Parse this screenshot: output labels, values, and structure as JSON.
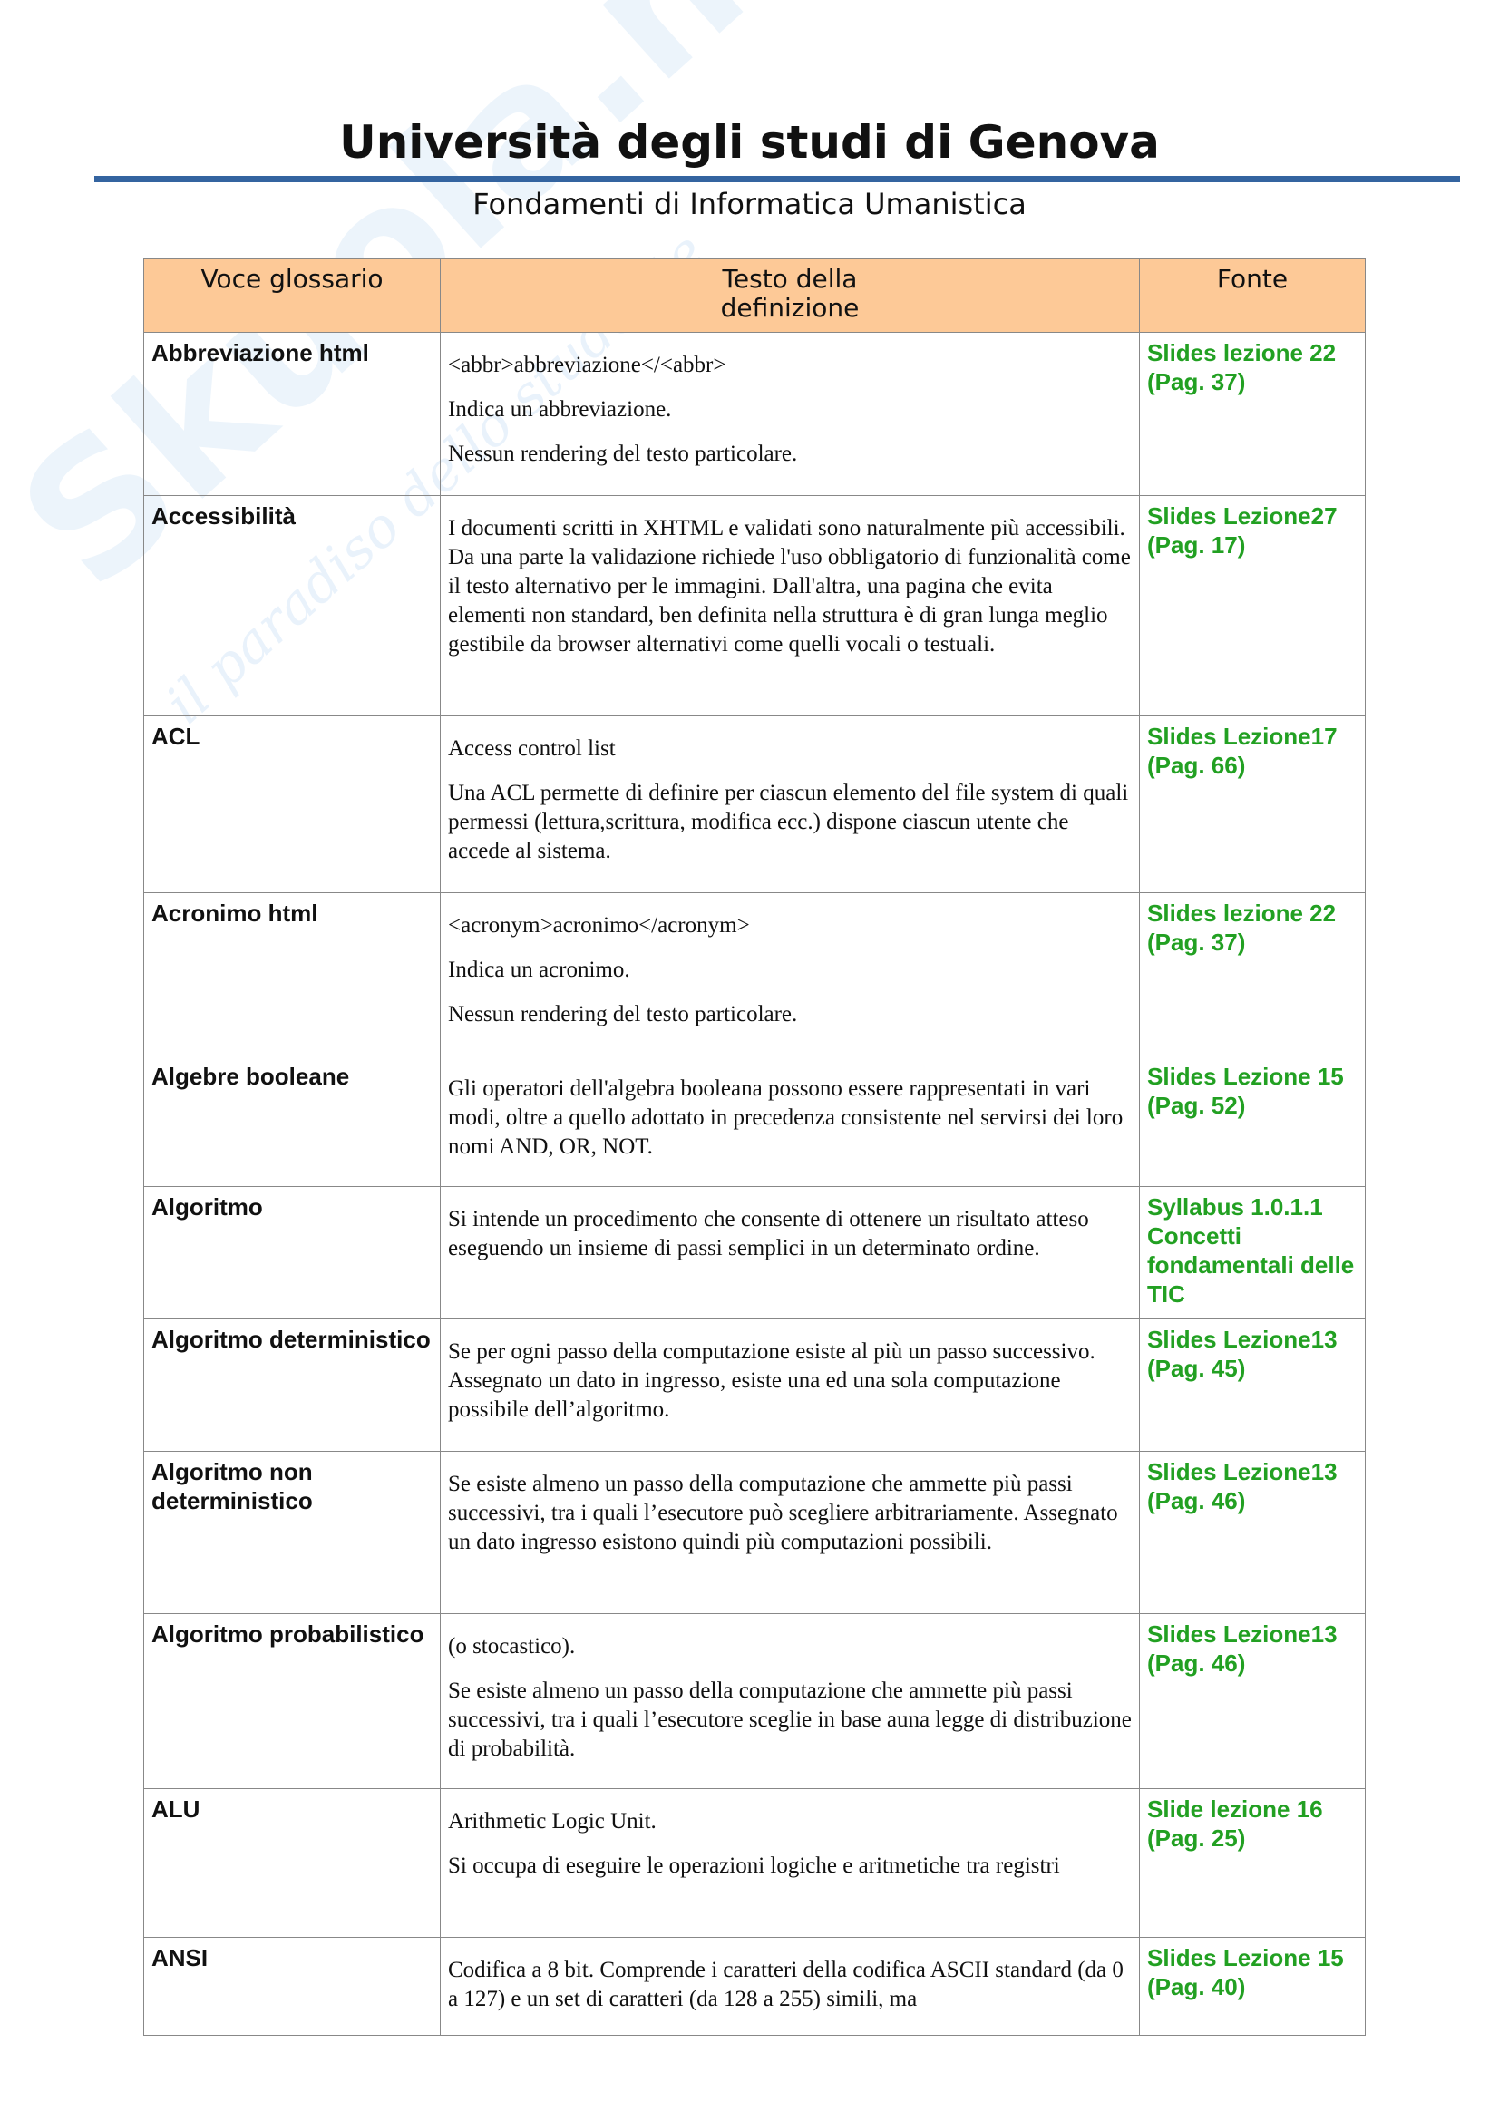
{
  "header": {
    "title": "Università degli studi di Genova",
    "subtitle": "Fondamenti di Informatica Umanistica"
  },
  "watermark": {
    "logo": "Skuola.net",
    "tagline": "il paradiso dello studente"
  },
  "table": {
    "columns": [
      "Voce glossario",
      "Testo della definizione",
      "Fonte"
    ],
    "rows": [
      {
        "term": "Abbreviazione html",
        "def": [
          "<abbr>abbreviazione</<abbr>",
          "Indica un abbreviazione.",
          "Nessun rendering del testo particolare."
        ],
        "src": "Slides lezione 22 (Pag. 37)"
      },
      {
        "term": "Accessibilità",
        "def": [
          "I documenti scritti in XHTML e validati sono naturalmente più accessibili. Da una parte la validazione richiede l'uso obbligatorio di funzionalità come il testo alternativo per le immagini. Dall'altra, una pagina che evita elementi non standard, ben definita nella struttura è di gran lunga meglio gestibile da browser alternativi come quelli vocali o testuali."
        ],
        "src": "Slides Lezione27 (Pag. 17)"
      },
      {
        "term": "ACL",
        "def": [
          "Access control list",
          "Una ACL permette di definire per ciascun elemento del file system di quali permessi (lettura,scrittura, modifica ecc.) dispone ciascun utente che accede al sistema."
        ],
        "src": "Slides Lezione17 (Pag. 66)"
      },
      {
        "term": "Acronimo html",
        "def": [
          "<acronym>acronimo</acronym>",
          "Indica un acronimo.",
          "Nessun rendering del testo particolare."
        ],
        "src": "Slides lezione 22 (Pag. 37)"
      },
      {
        "term": "Algebre booleane",
        "def": [
          "Gli operatori dell'algebra booleana possono essere rappresentati in vari modi, oltre a quello adottato in precedenza consistente nel servirsi dei loro nomi AND, OR, NOT."
        ],
        "src": "Slides Lezione 15 (Pag. 52)"
      },
      {
        "term": "Algoritmo",
        "def": [
          "Si intende un procedimento che consente di ottenere un risultato atteso eseguendo un insieme di passi semplici in un determinato ordine."
        ],
        "src": "Syllabus 1.0.1.1 Concetti fondamentali delle TIC"
      },
      {
        "term": "Algoritmo deterministico",
        "def": [
          "Se per ogni passo della computazione esiste al più un passo successivo. Assegnato un dato in ingresso, esiste una ed una sola computazione possibile dell’algoritmo."
        ],
        "src": "Slides Lezione13 (Pag. 45)"
      },
      {
        "term": "Algoritmo non deterministico",
        "def": [
          "Se esiste almeno un passo della computazione che ammette più passi successivi, tra i quali l’esecutore può scegliere arbitrariamente. Assegnato un dato ingresso esistono quindi più computazioni possibili."
        ],
        "src": "Slides Lezione13 (Pag. 46)"
      },
      {
        "term": "Algoritmo probabilistico",
        "def": [
          "(o stocastico).",
          "Se esiste almeno un passo della computazione che ammette più passi successivi, tra i quali l’esecutore sceglie in base auna legge di distribuzione di probabilità."
        ],
        "src": "Slides Lezione13 (Pag. 46)"
      },
      {
        "term": "ALU",
        "def": [
          "Arithmetic Logic Unit.",
          "Si  occupa di eseguire le operazioni logiche e aritmetiche tra registri"
        ],
        "src": "Slide lezione 16 (Pag. 25)"
      },
      {
        "term": "ANSI",
        "def": [
          "Codifica a 8 bit. Comprende i caratteri della codifica ASCII standard (da 0 a 127) e un set di caratteri (da 128 a 255) simili, ma"
        ],
        "src": "Slides Lezione 15 (Pag. 40)"
      }
    ]
  }
}
